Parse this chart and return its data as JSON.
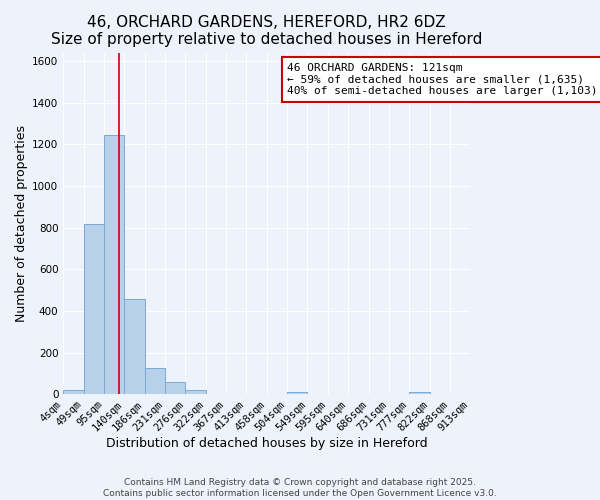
{
  "title": "46, ORCHARD GARDENS, HEREFORD, HR2 6DZ",
  "subtitle": "Size of property relative to detached houses in Hereford",
  "xlabel": "Distribution of detached houses by size in Hereford",
  "ylabel": "Number of detached properties",
  "bar_color": "#b8d0ea",
  "bar_edge_color": "#7aaad0",
  "background_color": "#eef2fb",
  "bar_heights": [
    20,
    820,
    1245,
    460,
    125,
    60,
    20,
    0,
    0,
    0,
    0,
    10,
    0,
    0,
    0,
    0,
    0,
    10,
    0,
    0
  ],
  "tick_labels": [
    "4sqm",
    "49sqm",
    "95sqm",
    "140sqm",
    "186sqm",
    "231sqm",
    "276sqm",
    "322sqm",
    "367sqm",
    "413sqm",
    "458sqm",
    "504sqm",
    "549sqm",
    "595sqm",
    "640sqm",
    "686sqm",
    "731sqm",
    "777sqm",
    "822sqm",
    "868sqm",
    "913sqm"
  ],
  "ylim": [
    0,
    1640
  ],
  "yticks": [
    0,
    200,
    400,
    600,
    800,
    1000,
    1200,
    1400,
    1600
  ],
  "n_bins": 20,
  "vline_bin": 2.72,
  "vline_color": "#cc0000",
  "annotation_text": "46 ORCHARD GARDENS: 121sqm\n← 59% of detached houses are smaller (1,635)\n40% of semi-detached houses are larger (1,103) →",
  "annotation_box_color": "#ffffff",
  "annotation_box_edge_color": "#cc0000",
  "footer_line1": "Contains HM Land Registry data © Crown copyright and database right 2025.",
  "footer_line2": "Contains public sector information licensed under the Open Government Licence v3.0.",
  "title_fontsize": 11,
  "subtitle_fontsize": 10,
  "axis_label_fontsize": 9,
  "tick_fontsize": 7.5,
  "annotation_fontsize": 8,
  "footer_fontsize": 6.5
}
